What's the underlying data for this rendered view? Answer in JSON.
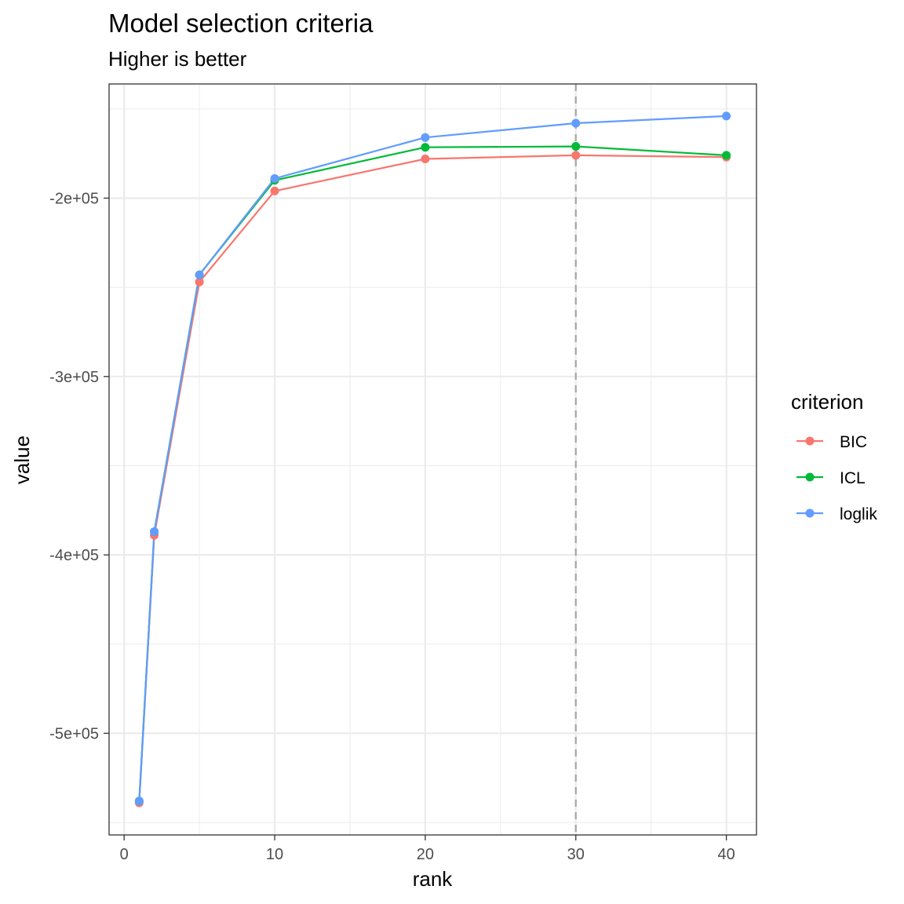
{
  "chart_data": {
    "type": "line",
    "title": "Model selection criteria",
    "subtitle": "Higher is better",
    "xlabel": "rank",
    "ylabel": "value",
    "x": [
      1,
      2,
      5,
      10,
      20,
      30,
      40
    ],
    "xlim": [
      -1,
      42
    ],
    "ylim": [
      -557000,
      -136000
    ],
    "x_ticks": [
      0,
      10,
      20,
      30,
      40
    ],
    "x_tick_labels": [
      "0",
      "10",
      "20",
      "30",
      "40"
    ],
    "y_ticks": [
      -500000,
      -400000,
      -300000,
      -200000
    ],
    "y_tick_labels": [
      "-5e+05",
      "-4e+05",
      "-3e+05",
      "-2e+05"
    ],
    "reference_line": {
      "x": 30,
      "style": "dashed",
      "color": "#a6a6a6"
    },
    "grid": true,
    "legend": {
      "title": "criterion",
      "placement": "right"
    },
    "series": [
      {
        "name": "BIC",
        "color": "#F8766D",
        "values": [
          -539000,
          -389000,
          -247000,
          -196000,
          -178000,
          -176000,
          -177000
        ]
      },
      {
        "name": "ICL",
        "color": "#00BA38",
        "values": [
          -538000,
          -387000,
          -243000,
          -190000,
          -171500,
          -171000,
          -176000
        ]
      },
      {
        "name": "loglik",
        "color": "#619CFF",
        "values": [
          -538000,
          -387000,
          -243000,
          -189000,
          -166000,
          -158000,
          -154000
        ]
      }
    ]
  }
}
